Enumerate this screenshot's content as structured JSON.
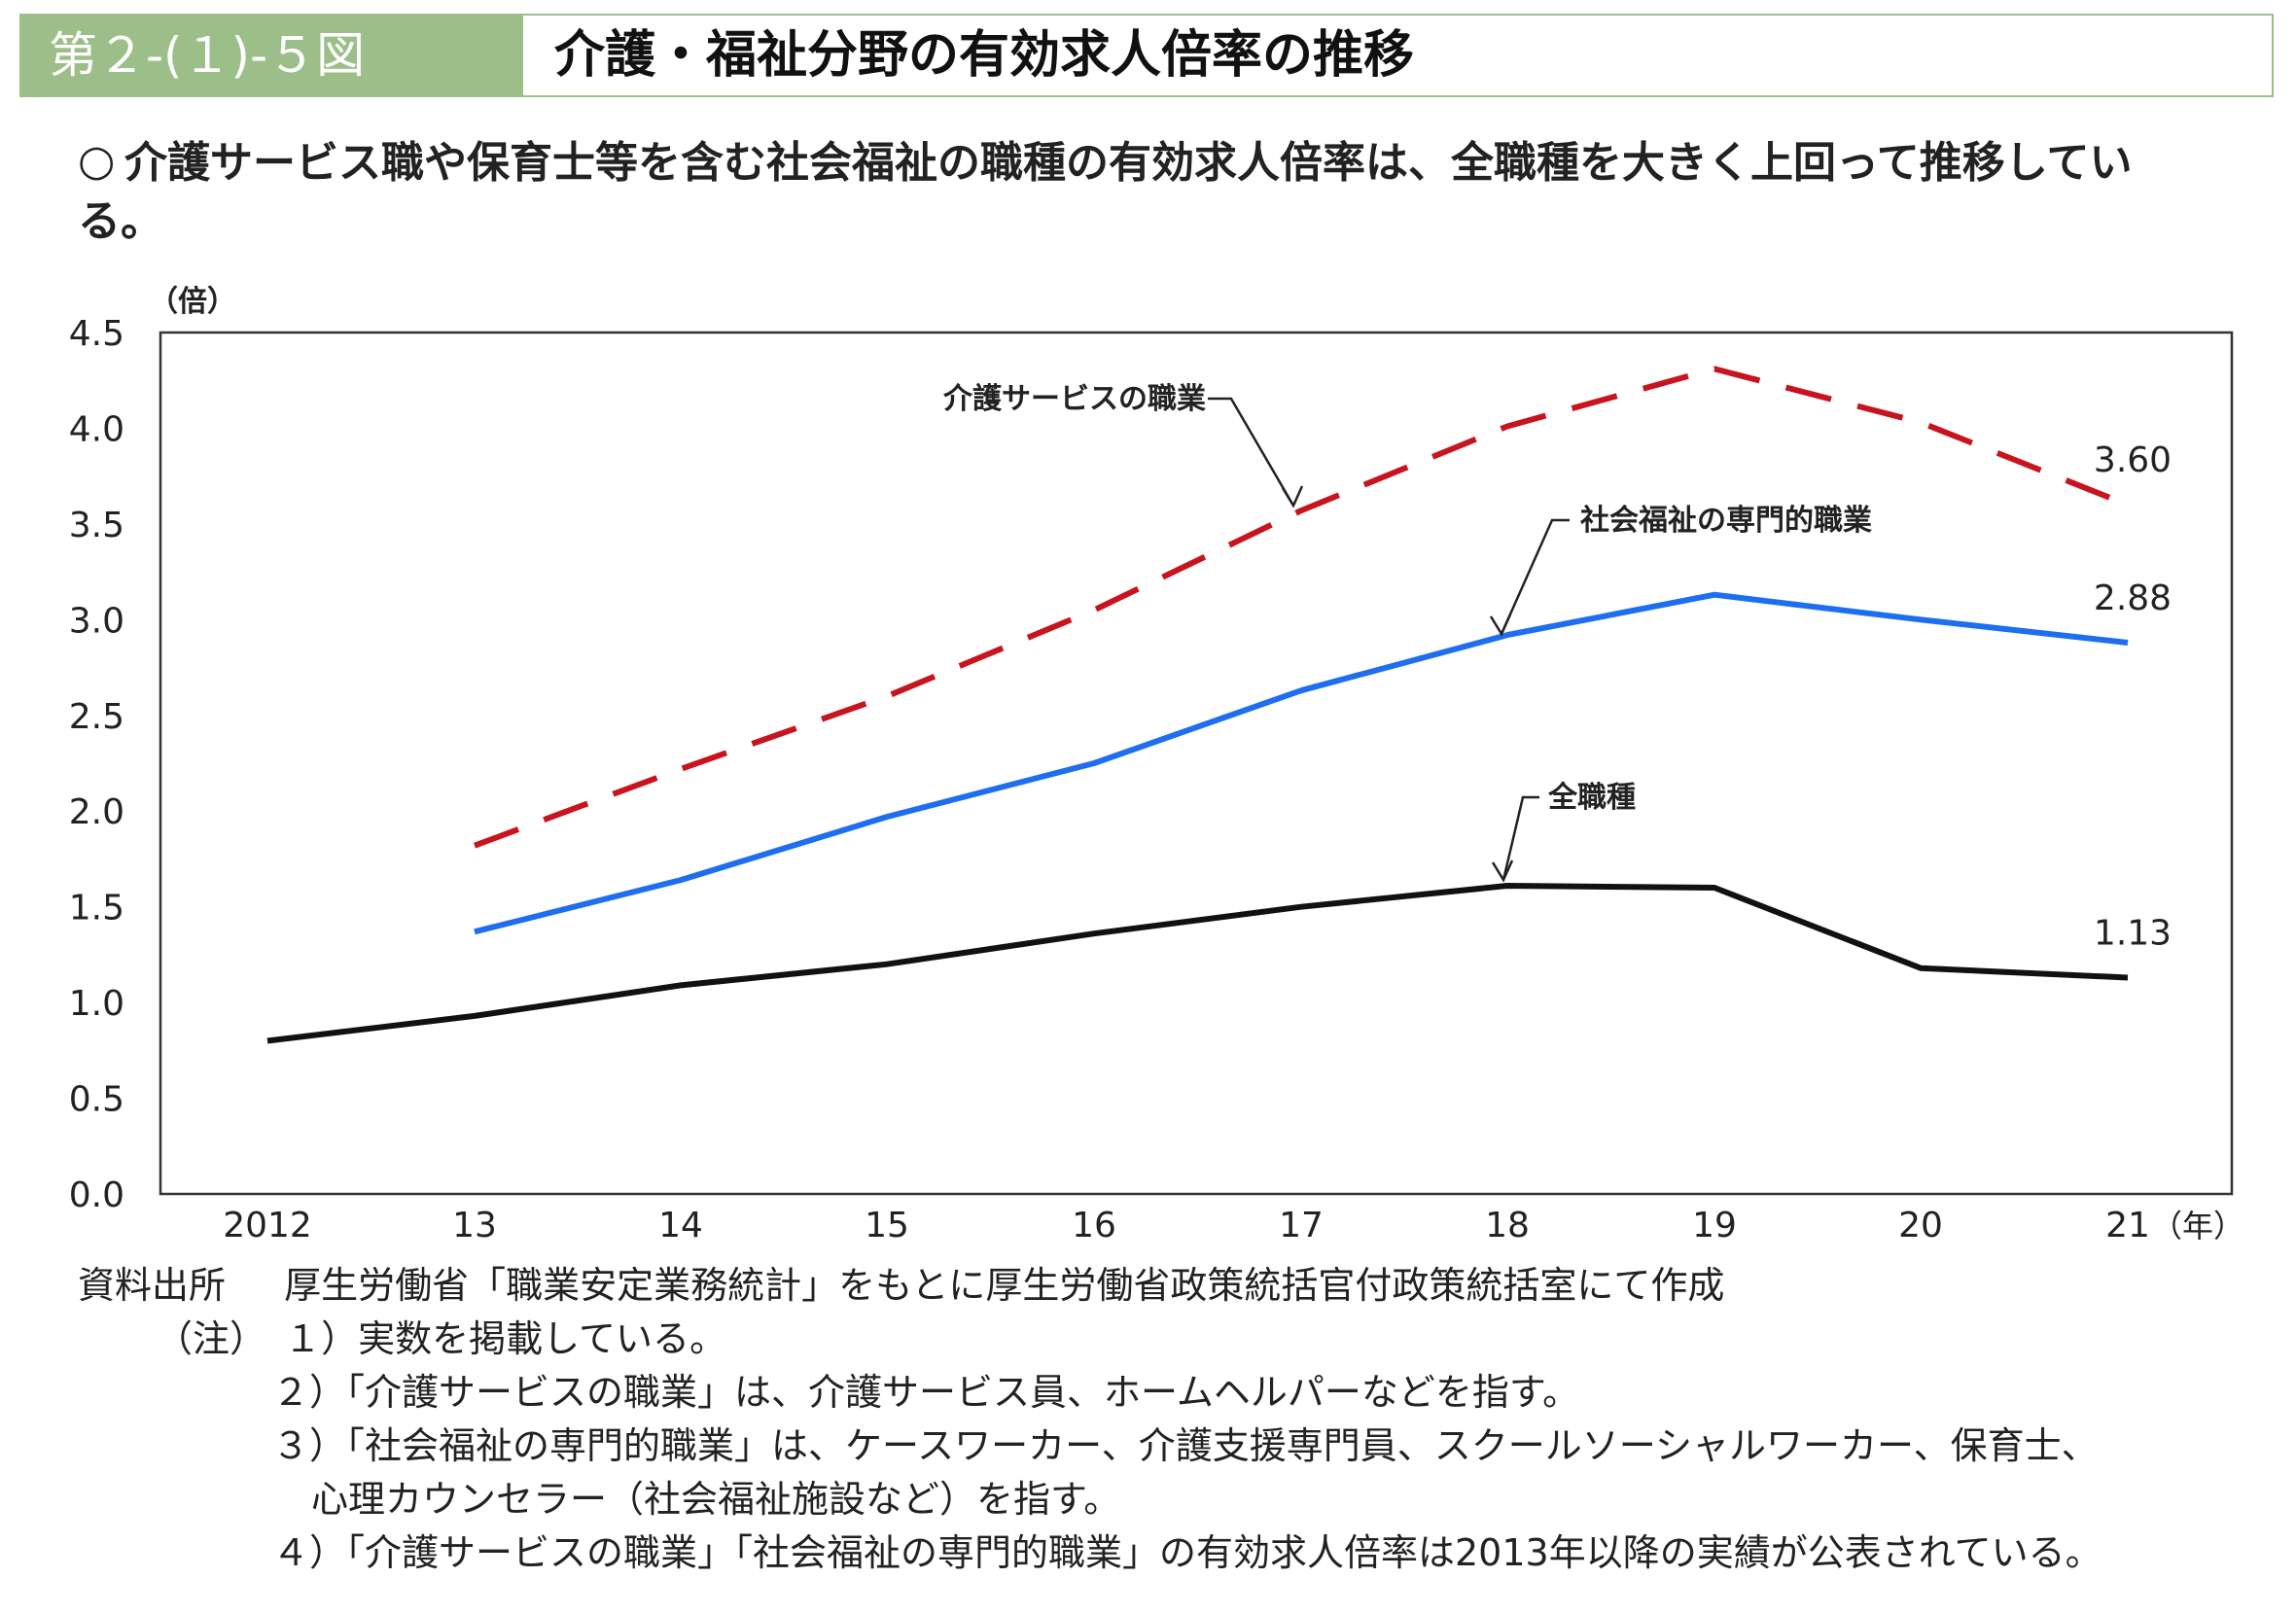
{
  "figure": {
    "number": "第２-(１)-５図",
    "title": "介護・福祉分野の有効求人倍率の推移"
  },
  "summary": {
    "bullet": "○",
    "text": "介護サービス職や保育士等を含む社会福祉の職種の有効求人倍率は、全職種を大きく上回って推移している。"
  },
  "chart_data": {
    "type": "line",
    "ylabel": "（倍）",
    "xlabel": "（年）",
    "ylim": [
      0,
      4.5
    ],
    "yticks": [
      "0.0",
      "0.5",
      "1.0",
      "1.5",
      "2.0",
      "2.5",
      "3.0",
      "3.5",
      "4.0",
      "4.5"
    ],
    "categories": [
      "2012",
      "13",
      "14",
      "15",
      "16",
      "17",
      "18",
      "19",
      "20",
      "21"
    ],
    "grid": false,
    "series": [
      {
        "name": "介護サービスの職業",
        "style": "dashed",
        "color": "#c8141e",
        "values": [
          null,
          1.82,
          2.22,
          2.6,
          3.05,
          3.57,
          4.01,
          4.31,
          4.03,
          3.6
        ],
        "end_label": "3.60"
      },
      {
        "name": "社会福祉の専門的職業",
        "style": "solid",
        "color": "#1e6ef0",
        "values": [
          null,
          1.37,
          1.64,
          1.97,
          2.25,
          2.63,
          2.92,
          3.13,
          3.0,
          2.88
        ],
        "end_label": "2.88"
      },
      {
        "name": "全職種",
        "style": "solid",
        "color": "#111111",
        "values": [
          0.8,
          0.93,
          1.09,
          1.2,
          1.36,
          1.5,
          1.61,
          1.6,
          1.18,
          1.13
        ],
        "end_label": "1.13"
      }
    ]
  },
  "notes": {
    "source_label": "資料出所",
    "source_text": "厚生労働省「職業安定業務統計」をもとに厚生労働省政策統括官付政策統括室にて作成",
    "note_label": "（注）",
    "items": [
      "１）実数を掲載している。",
      "２）「介護サービスの職業」は、介護サービス員、ホームヘルパーなどを指す。",
      "３）「社会福祉の専門的職業」は、ケースワーカー、介護支援専門員、スクールソーシャルワーカー、保育士、",
      "心理カウンセラー（社会福祉施設など）を指す。",
      "４）「介護サービスの職業」「社会福祉の専門的職業」の有効求人倍率は2013年以降の実績が公表されている。"
    ]
  }
}
